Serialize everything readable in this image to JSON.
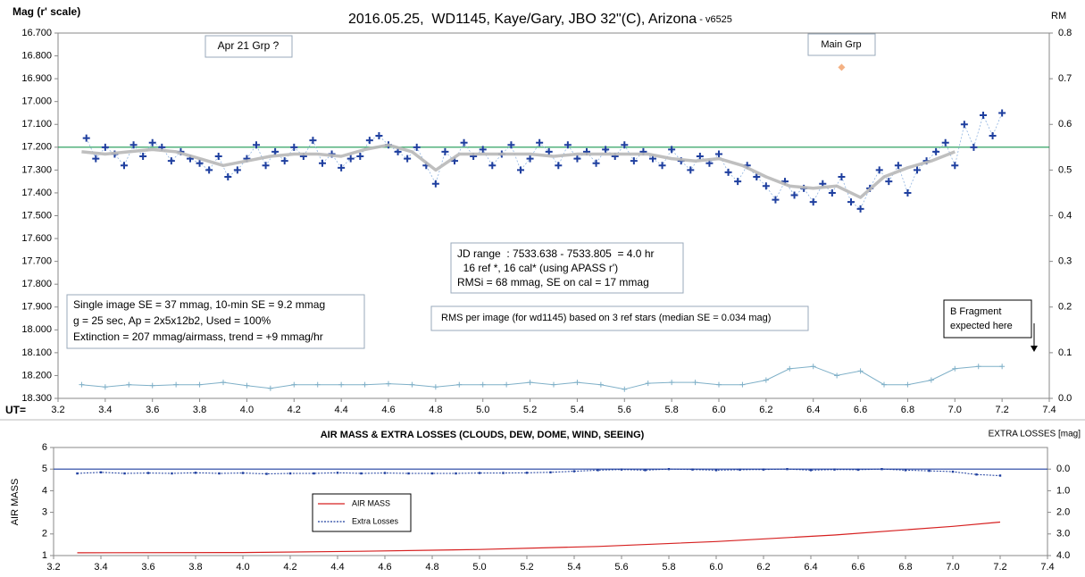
{
  "chart_data": [
    {
      "type": "scatter",
      "title": "2016.05.25,  WD1145, Kaye/Gary, JBO 32\"(C), Arizona",
      "title_suffix": " - v6525",
      "ylabel": "Mag (r' scale)",
      "y2label": "RM",
      "xlabel": "UT=",
      "xlim": [
        3.2,
        7.4
      ],
      "xticks": [
        3.2,
        3.4,
        3.6,
        3.8,
        {
          "value": 4,
          "label": "4.0"
        },
        4.2,
        4.4,
        4.6,
        4.8,
        {
          "value": 5,
          "label": "5.0"
        },
        5.2,
        5.4,
        5.6,
        5.8,
        {
          "value": 6,
          "label": "6.0"
        },
        6.2,
        6.4,
        6.6,
        6.8,
        {
          "value": 7,
          "label": "7.0"
        },
        7.2,
        7.4
      ],
      "ylim": [
        16.7,
        18.3
      ],
      "y_inverted": true,
      "yticks": [
        {
          "value": 16.7,
          "label": "16.700"
        },
        {
          "value": 16.8,
          "label": "16.800"
        },
        {
          "value": 16.9,
          "label": "16.900"
        },
        {
          "value": 17,
          "label": "17.000"
        },
        {
          "value": 17.1,
          "label": "17.100"
        },
        {
          "value": 17.2,
          "label": "17.200"
        },
        {
          "value": 17.3,
          "label": "17.300"
        },
        {
          "value": 17.4,
          "label": "17.400"
        },
        {
          "value": 17.5,
          "label": "17.500"
        },
        {
          "value": 17.6,
          "label": "17.600"
        },
        {
          "value": 17.7,
          "label": "17.700"
        },
        {
          "value": 17.8,
          "label": "17.800"
        },
        {
          "value": 17.9,
          "label": "17.900"
        },
        {
          "value": 18,
          "label": "18.000"
        },
        {
          "value": 18.1,
          "label": "18.100"
        },
        {
          "value": 18.2,
          "label": "18.200"
        },
        {
          "value": 18.3,
          "label": "18.300"
        }
      ],
      "y2lim": [
        0,
        0.8
      ],
      "y2_inverted": false,
      "y2ticks": [
        {
          "value": 0,
          "label": "0.0"
        },
        0.1,
        0.2,
        0.3,
        0.4,
        0.5,
        0.6,
        0.7,
        0.8
      ],
      "reference_line": {
        "value": 17.2,
        "color": "#1a9850"
      },
      "series": [
        {
          "style": "cross",
          "color": "#1f3f9f",
          "x": [
            3.32,
            3.36,
            3.4,
            3.44,
            3.48,
            3.52,
            3.56,
            3.6,
            3.64,
            3.68,
            3.72,
            3.76,
            3.8,
            3.84,
            3.88,
            3.92,
            3.96,
            4.0,
            4.04,
            4.08,
            4.12,
            4.16,
            4.2,
            4.24,
            4.28,
            4.32,
            4.36,
            4.4,
            4.44,
            4.48,
            4.52,
            4.56,
            4.6,
            4.64,
            4.68,
            4.72,
            4.76,
            4.8,
            4.84,
            4.88,
            4.92,
            4.96,
            5.0,
            5.04,
            5.08,
            5.12,
            5.16,
            5.2,
            5.24,
            5.28,
            5.32,
            5.36,
            5.4,
            5.44,
            5.48,
            5.52,
            5.56,
            5.6,
            5.64,
            5.68,
            5.72,
            5.76,
            5.8,
            5.84,
            5.88,
            5.92,
            5.96,
            6.0,
            6.04,
            6.08,
            6.12,
            6.16,
            6.2,
            6.24,
            6.28,
            6.32,
            6.36,
            6.4,
            6.44,
            6.48,
            6.52,
            6.56,
            6.6,
            6.64,
            6.68,
            6.72,
            6.76,
            6.8,
            6.84,
            6.88,
            6.92,
            6.96,
            7.0,
            7.04,
            7.08,
            7.12,
            7.16,
            7.2
          ],
          "values": [
            17.16,
            17.25,
            17.2,
            17.23,
            17.28,
            17.19,
            17.24,
            17.18,
            17.2,
            17.26,
            17.22,
            17.25,
            17.27,
            17.3,
            17.24,
            17.33,
            17.3,
            17.25,
            17.19,
            17.28,
            17.22,
            17.26,
            17.2,
            17.24,
            17.17,
            17.27,
            17.23,
            17.29,
            17.25,
            17.24,
            17.17,
            17.15,
            17.19,
            17.22,
            17.25,
            17.2,
            17.28,
            17.36,
            17.22,
            17.26,
            17.18,
            17.24,
            17.21,
            17.28,
            17.23,
            17.19,
            17.3,
            17.25,
            17.18,
            17.22,
            17.28,
            17.19,
            17.25,
            17.22,
            17.27,
            17.21,
            17.24,
            17.19,
            17.26,
            17.22,
            17.25,
            17.28,
            17.21,
            17.26,
            17.3,
            17.24,
            17.27,
            17.23,
            17.31,
            17.35,
            17.28,
            17.33,
            17.37,
            17.43,
            17.35,
            17.41,
            17.38,
            17.44,
            17.36,
            17.4,
            17.33,
            17.44,
            17.47,
            17.38,
            17.3,
            17.35,
            17.28,
            17.4,
            17.3,
            17.26,
            17.22,
            17.18,
            17.28,
            17.1,
            17.2,
            17.06,
            17.15,
            17.05
          ]
        },
        {
          "style": "smooth",
          "color": "#b8b8b8",
          "x": [
            3.3,
            3.4,
            3.5,
            3.6,
            3.7,
            3.8,
            3.9,
            4.0,
            4.1,
            4.2,
            4.3,
            4.4,
            4.5,
            4.6,
            4.7,
            4.8,
            4.9,
            5.0,
            5.1,
            5.2,
            5.3,
            5.4,
            5.5,
            5.6,
            5.7,
            5.8,
            5.9,
            6.0,
            6.1,
            6.2,
            6.3,
            6.4,
            6.5,
            6.6,
            6.7,
            6.8,
            6.9,
            7.0
          ],
          "values": [
            17.22,
            17.23,
            17.22,
            17.21,
            17.22,
            17.25,
            17.28,
            17.26,
            17.24,
            17.23,
            17.23,
            17.24,
            17.21,
            17.19,
            17.22,
            17.3,
            17.23,
            17.23,
            17.23,
            17.23,
            17.24,
            17.23,
            17.23,
            17.23,
            17.23,
            17.25,
            17.26,
            17.25,
            17.28,
            17.33,
            17.37,
            17.38,
            17.37,
            17.42,
            17.33,
            17.29,
            17.26,
            17.22
          ]
        },
        {
          "style": "rms",
          "color": "#7fb0c8",
          "axis": "y2",
          "x": [
            3.3,
            3.4,
            3.5,
            3.6,
            3.7,
            3.8,
            3.9,
            4.0,
            4.1,
            4.2,
            4.3,
            4.4,
            4.5,
            4.6,
            4.7,
            4.8,
            4.9,
            5.0,
            5.1,
            5.2,
            5.3,
            5.4,
            5.5,
            5.6,
            5.7,
            5.8,
            5.9,
            6.0,
            6.1,
            6.2,
            6.3,
            6.4,
            6.5,
            6.6,
            6.7,
            6.8,
            6.9,
            7.0,
            7.1,
            7.2
          ],
          "values": [
            0.03,
            0.025,
            0.03,
            0.028,
            0.03,
            0.03,
            0.035,
            0.028,
            0.022,
            0.03,
            0.03,
            0.03,
            0.03,
            0.032,
            0.03,
            0.025,
            0.03,
            0.03,
            0.03,
            0.035,
            0.03,
            0.035,
            0.03,
            0.02,
            0.033,
            0.035,
            0.035,
            0.03,
            0.03,
            0.04,
            0.065,
            0.07,
            0.05,
            0.06,
            0.03,
            0.03,
            0.04,
            0.065,
            0.07,
            0.07
          ]
        }
      ],
      "markers": [
        {
          "x": 6.52,
          "y": 16.85,
          "color": "#f4b183"
        }
      ],
      "annotations": {
        "apr21": "Apr 21 Grp ?",
        "main": "Main Grp",
        "jd": [
          "JD range  : 7533.638 - 7533.805  = 4.0 hr",
          "  16 ref *, 16 cal* (using APASS r')",
          "RMSi = 68 mmag, SE on cal = 17 mmag"
        ],
        "single": [
          "Single image SE = 37 mmag, 10-min SE = 9.2 mmag",
          "g = 25 sec, Ap = 2x5x12b2, Used = 100%",
          "Extinction = 207 mmag/airmass, trend = +9 mmag/hr"
        ],
        "rms": "RMS per image (for wd1145) based on 3 ref stars (median SE = 0.034 mag)",
        "bfrag": [
          "B Fragment",
          "expected here"
        ]
      }
    },
    {
      "type": "line",
      "title": "AIR MASS & EXTRA LOSSES (CLOUDS, DEW, DOME, WIND, SEEING)",
      "ylabel": "AIR MASS",
      "y2label": "EXTRA LOSSES [mag]",
      "xlim": [
        3.2,
        7.4
      ],
      "xticks": [
        3.2,
        3.4,
        3.6,
        3.8,
        {
          "value": 4,
          "label": "4.0"
        },
        4.2,
        4.4,
        4.6,
        4.8,
        {
          "value": 5,
          "label": "5.0"
        },
        5.2,
        5.4,
        5.6,
        5.8,
        {
          "value": 6,
          "label": "6.0"
        },
        6.2,
        6.4,
        6.6,
        6.8,
        {
          "value": 7,
          "label": "7.0"
        },
        7.2,
        7.4
      ],
      "ylim": [
        1,
        6
      ],
      "y_inverted": false,
      "yticks": [
        1,
        2,
        3,
        4,
        5,
        6
      ],
      "y2lim": [
        -1,
        4
      ],
      "y2_inverted": true,
      "y2ticks": [
        {
          "value": 0,
          "label": "0.0"
        },
        {
          "value": 1,
          "label": "1.0"
        },
        {
          "value": 2,
          "label": "2.0"
        },
        {
          "value": 3,
          "label": "3.0"
        },
        {
          "value": 4,
          "label": "4.0"
        }
      ],
      "reference_line": {
        "value": 0,
        "axis": "y2",
        "color": "#1f3f9f"
      },
      "series": [
        {
          "name": "AIR MASS",
          "style": "line",
          "color": "#d62020",
          "x": [
            3.3,
            4.0,
            4.5,
            5.0,
            5.5,
            6.0,
            6.5,
            7.0,
            7.2
          ],
          "values": [
            1.13,
            1.14,
            1.2,
            1.28,
            1.42,
            1.65,
            1.95,
            2.35,
            2.55
          ]
        },
        {
          "name": "Extra Losses",
          "style": "dashed",
          "color": "#1f3f9f",
          "axis": "y2",
          "x": [
            3.3,
            3.4,
            3.5,
            3.6,
            3.7,
            3.8,
            3.9,
            4.0,
            4.1,
            4.2,
            4.3,
            4.4,
            4.5,
            4.6,
            4.7,
            4.8,
            4.9,
            5.0,
            5.1,
            5.2,
            5.3,
            5.4,
            5.5,
            5.6,
            5.7,
            5.8,
            5.9,
            6.0,
            6.1,
            6.2,
            6.3,
            6.4,
            6.5,
            6.6,
            6.7,
            6.8,
            6.9,
            7.0,
            7.1,
            7.2
          ],
          "values": [
            0.2,
            0.15,
            0.2,
            0.18,
            0.2,
            0.17,
            0.2,
            0.18,
            0.22,
            0.2,
            0.2,
            0.17,
            0.2,
            0.18,
            0.2,
            0.2,
            0.2,
            0.18,
            0.18,
            0.17,
            0.15,
            0.1,
            0.05,
            0.02,
            0.05,
            0.0,
            0.02,
            0.05,
            0.03,
            0.02,
            0.0,
            0.05,
            0.02,
            0.03,
            0.0,
            0.05,
            0.08,
            0.12,
            0.25,
            0.3
          ]
        }
      ],
      "legend": "center-left"
    }
  ]
}
